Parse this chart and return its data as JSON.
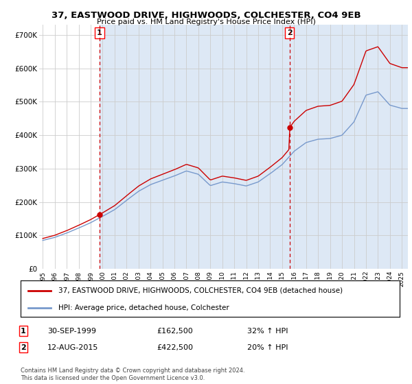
{
  "title": "37, EASTWOOD DRIVE, HIGHWOODS, COLCHESTER, CO4 9EB",
  "subtitle": "Price paid vs. HM Land Registry's House Price Index (HPI)",
  "ylim": [
    0,
    730000
  ],
  "xlim_start": 1994.7,
  "xlim_end": 2025.5,
  "purchase1_date": 1999.75,
  "purchase1_price": 162500,
  "purchase1_label": "1",
  "purchase2_date": 2015.62,
  "purchase2_price": 422500,
  "purchase2_label": "2",
  "legend_line1": "37, EASTWOOD DRIVE, HIGHWOODS, COLCHESTER, CO4 9EB (detached house)",
  "legend_line2": "HPI: Average price, detached house, Colchester",
  "hpi_color": "#7799cc",
  "price_color": "#cc0000",
  "dashed_color": "#cc0000",
  "shade_color": "#dde8f5",
  "background_color": "#ffffff",
  "grid_color": "#cccccc"
}
